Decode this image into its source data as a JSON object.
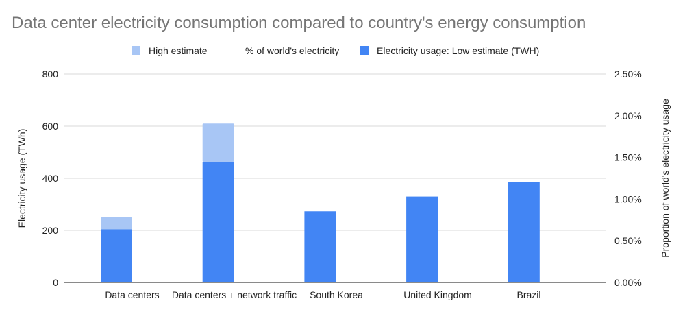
{
  "chart_data": {
    "type": "bar",
    "title": "Data center electricity consumption compared to country's energy consumption",
    "categories": [
      "Data centers",
      "Data centers + network traffic",
      "South Korea",
      "United Kingdom",
      "Brazil"
    ],
    "series": [
      {
        "name": "Electricity usage: Low estimate (TWH)",
        "values": [
          204,
          463,
          273,
          330,
          385
        ],
        "color": "#4285f4"
      },
      {
        "name": "High estimate",
        "values": [
          250,
          610,
          null,
          null,
          null
        ],
        "color": "#a8c6f5"
      },
      {
        "name": "% of world's electricity",
        "values": [
          null,
          null,
          null,
          null,
          null
        ],
        "axis": "right"
      }
    ],
    "legend_order": [
      "High estimate",
      "% of world's electricity",
      "Electricity usage: Low estimate (TWH)"
    ],
    "legend_position": "top",
    "stacked": true,
    "ylabel": "Electricity usage (TWh)",
    "ylim": [
      0,
      800
    ],
    "yticks": [
      "0",
      "200",
      "400",
      "600",
      "800"
    ],
    "y2label": "Proportion of world's electricity usage",
    "y2lim": [
      0,
      2.5
    ],
    "y2ticks": [
      "0.00%",
      "0.50%",
      "1.00%",
      "1.50%",
      "2.00%",
      "2.50%"
    ],
    "grid": true
  }
}
